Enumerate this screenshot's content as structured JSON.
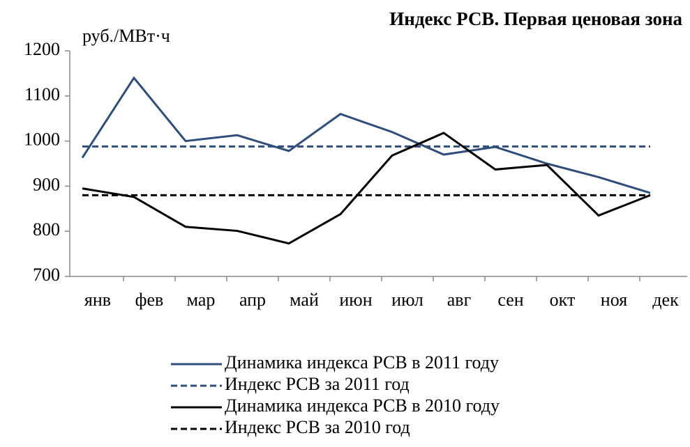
{
  "chart_data": {
    "type": "line",
    "title": "Индекс РСВ. Первая ценовая зона",
    "y_label": "руб./МВт·ч",
    "categories": [
      "янв",
      "фев",
      "мар",
      "апр",
      "май",
      "июн",
      "июл",
      "авг",
      "сен",
      "окт",
      "ноя",
      "дек"
    ],
    "ylim": [
      700,
      1200
    ],
    "yticks": [
      700,
      800,
      900,
      1000,
      1100,
      1200
    ],
    "grid": false,
    "series": [
      {
        "name": "Динамика индекса РСВ в 2011 году",
        "color": "#2e4d7b",
        "dash": false,
        "values": [
          963,
          1140,
          1000,
          1013,
          978,
          1060,
          1020,
          970,
          987,
          950,
          920,
          885
        ]
      },
      {
        "name": "Индекс РСВ за 2011 год",
        "color": "#2e4d7b",
        "dash": true,
        "values": [
          988,
          988,
          988,
          988,
          988,
          988,
          988,
          988,
          988,
          988,
          988,
          988
        ]
      },
      {
        "name": "Динамика индекса РСВ в 2010 году",
        "color": "#000000",
        "dash": false,
        "values": [
          895,
          876,
          810,
          801,
          773,
          838,
          968,
          1018,
          937,
          947,
          835,
          880
        ]
      },
      {
        "name": "Индекс РСВ за 2010 год",
        "color": "#000000",
        "dash": true,
        "values": [
          880,
          880,
          880,
          880,
          880,
          880,
          880,
          880,
          880,
          880,
          880,
          880
        ]
      }
    ]
  }
}
